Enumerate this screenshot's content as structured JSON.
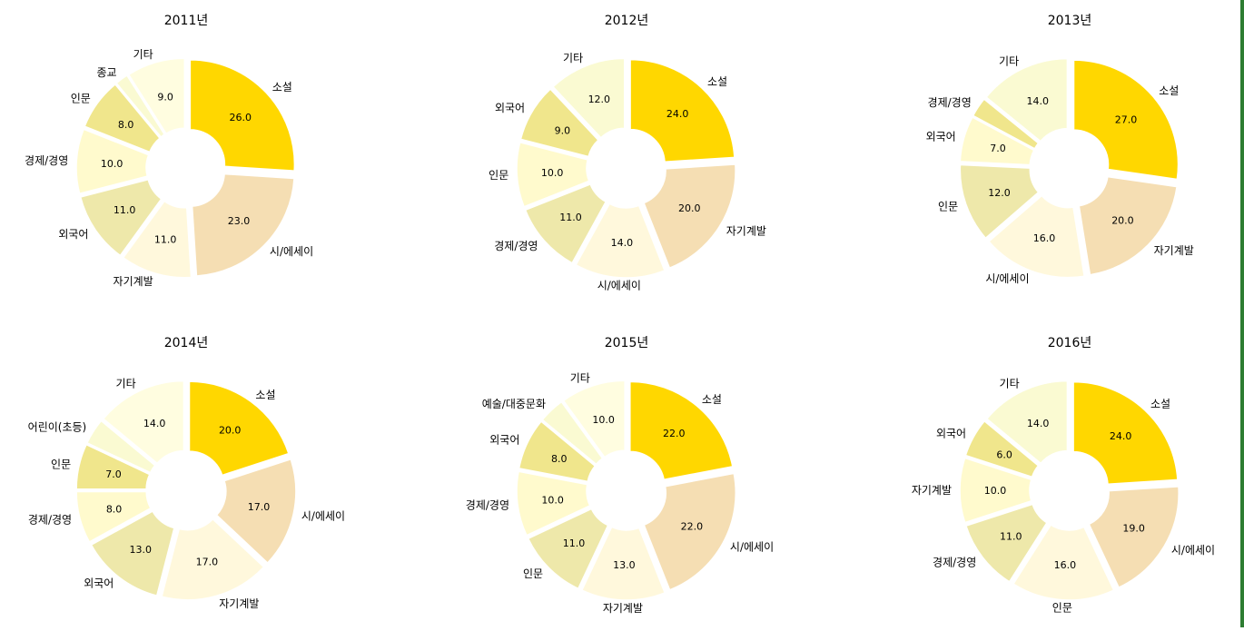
{
  "chart_data": [
    {
      "type": "pie",
      "title": "2011년",
      "labels": [
        "소설",
        "시/에세이",
        "자기계발",
        "외국어",
        "경제/경영",
        "인문",
        "종교",
        "기타"
      ],
      "values": [
        26.0,
        23.0,
        11.0,
        11.0,
        10.0,
        8.0,
        2.0,
        9.0
      ],
      "value_labels": [
        "26.0",
        "23.0",
        "11.0",
        "11.0",
        "10.0",
        "8.0",
        "",
        "9.0"
      ]
    },
    {
      "type": "pie",
      "title": "2012년",
      "labels": [
        "소설",
        "자기계발",
        "시/에세이",
        "경제/경영",
        "인문",
        "외국어",
        "기타"
      ],
      "values": [
        24.0,
        20.0,
        14.0,
        11.0,
        10.0,
        9.0,
        12.0
      ],
      "value_labels": [
        "24.0",
        "20.0",
        "14.0",
        "11.0",
        "10.0",
        "9.0",
        "12.0"
      ]
    },
    {
      "type": "pie",
      "title": "2013년",
      "labels": [
        "소설",
        "자기계발",
        "시/에세이",
        "인문",
        "외국어",
        "경제/경영",
        "기타"
      ],
      "values": [
        27.0,
        20.0,
        16.0,
        12.0,
        7.0,
        3.0,
        14.0
      ],
      "value_labels": [
        "27.0",
        "20.0",
        "16.0",
        "12.0",
        "7.0",
        "",
        "14.0"
      ]
    },
    {
      "type": "pie",
      "title": "2014년",
      "labels": [
        "소설",
        "시/에세이",
        "자기계발",
        "외국어",
        "경제/경영",
        "인문",
        "어린이(초등)",
        "기타"
      ],
      "values": [
        20.0,
        17.0,
        17.0,
        13.0,
        8.0,
        7.0,
        4.0,
        14.0
      ],
      "value_labels": [
        "20.0",
        "17.0",
        "17.0",
        "13.0",
        "8.0",
        "7.0",
        "",
        "14.0"
      ]
    },
    {
      "type": "pie",
      "title": "2015년",
      "labels": [
        "소설",
        "시/에세이",
        "자기계발",
        "인문",
        "경제/경영",
        "외국어",
        "예술/대중문화",
        "기타"
      ],
      "values": [
        22.0,
        22.0,
        13.0,
        11.0,
        10.0,
        8.0,
        4.0,
        10.0
      ],
      "value_labels": [
        "22.0",
        "22.0",
        "13.0",
        "11.0",
        "10.0",
        "8.0",
        "",
        "10.0"
      ]
    },
    {
      "type": "pie",
      "title": "2016년",
      "labels": [
        "소설",
        "시/에세이",
        "인문",
        "경제/경영",
        "자기계발",
        "외국어",
        "기타"
      ],
      "values": [
        24.0,
        19.0,
        16.0,
        11.0,
        10.0,
        6.0,
        14.0
      ],
      "value_labels": [
        "24.0",
        "19.0",
        "16.0",
        "11.0",
        "10.0",
        "6.0",
        "14.0"
      ]
    }
  ],
  "palette": [
    "#ffd700",
    "#f5deb3",
    "#fff8dc",
    "#eee8aa",
    "#fffacd",
    "#f0e68c",
    "#fafad2",
    "#fffde0"
  ]
}
